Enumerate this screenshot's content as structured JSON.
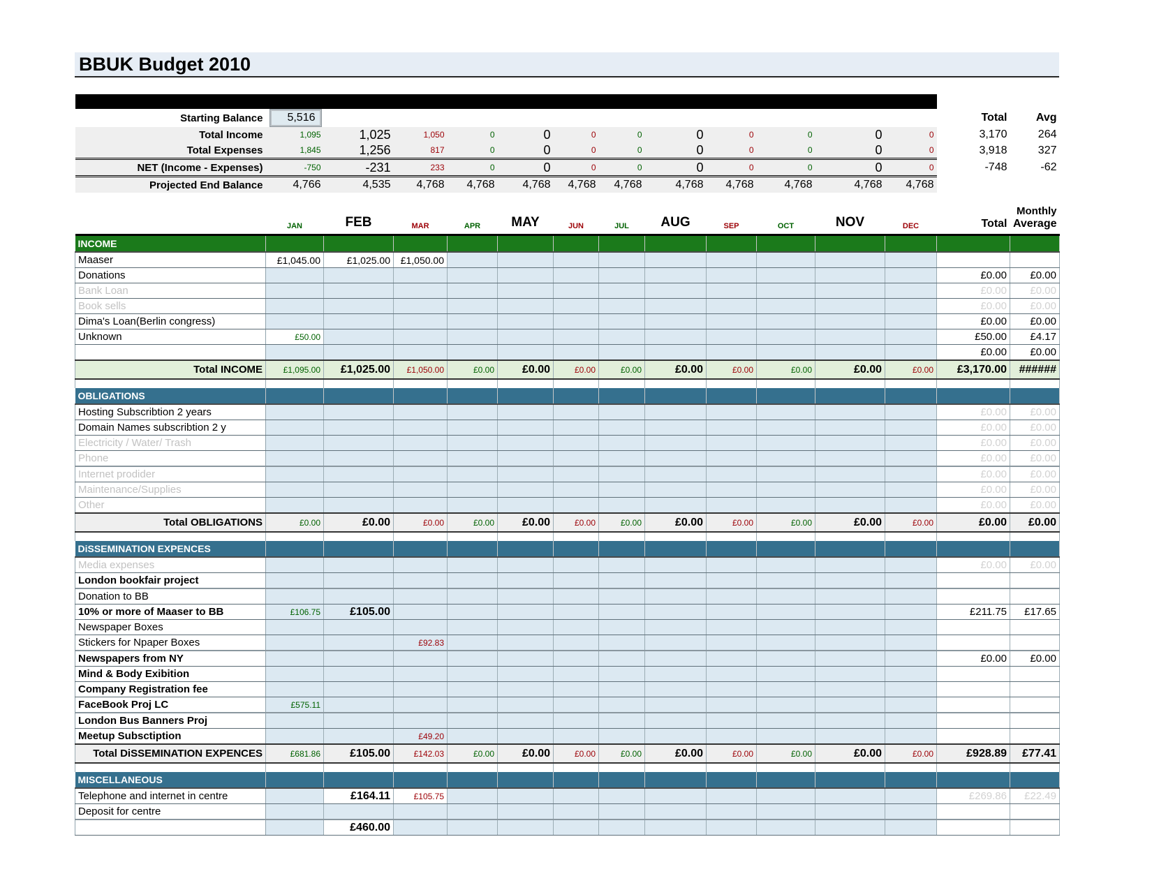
{
  "title": "BBUK Budget 2010",
  "colors": {
    "income_header": "#1B7A1B",
    "section_header": "#35708E",
    "month_cell_blue": "#DCE9F2",
    "total_income_bg": "#E2EFDA",
    "summary_band": "#EFEFEF",
    "value_green": "#006100",
    "value_red": "#9C0006",
    "disabled_gray": "#C2C2C2"
  },
  "months": [
    {
      "label": "JAN",
      "s": "g"
    },
    {
      "label": "FEB",
      "s": "b"
    },
    {
      "label": "MAR",
      "s": "r"
    },
    {
      "label": "APR",
      "s": "g"
    },
    {
      "label": "MAY",
      "s": "b"
    },
    {
      "label": "JUN",
      "s": "r"
    },
    {
      "label": "JUL",
      "s": "g"
    },
    {
      "label": "AUG",
      "s": "b"
    },
    {
      "label": "SEP",
      "s": "r"
    },
    {
      "label": "OCT",
      "s": "g"
    },
    {
      "label": "NOV",
      "s": "b"
    },
    {
      "label": "DEC",
      "s": "r"
    }
  ],
  "summary": {
    "starting_balance": {
      "label": "Starting Balance",
      "value": "5,516"
    },
    "total_header": "Total",
    "avg_header": "Avg",
    "monthly_label": "Monthly",
    "total_label": "Total",
    "average_label": "Average",
    "rows": [
      {
        "label": "Total Income",
        "values": [
          "1,095",
          "1,025",
          "1,050",
          "0",
          "0",
          "0",
          "0",
          "0",
          "0",
          "0",
          "0",
          "0"
        ],
        "total": "3,170",
        "avg": "264",
        "mode": "pattern"
      },
      {
        "label": "Total Expenses",
        "values": [
          "1,845",
          "1,256",
          "817",
          "0",
          "0",
          "0",
          "0",
          "0",
          "0",
          "0",
          "0",
          "0"
        ],
        "total": "3,918",
        "avg": "327",
        "mode": "pattern",
        "dbot": true
      },
      {
        "label": "NET (Income - Expenses)",
        "values": [
          "-750",
          "-231",
          "233",
          "0",
          "0",
          "0",
          "0",
          "0",
          "0",
          "0",
          "0",
          "0"
        ],
        "total": "-748",
        "avg": "-62",
        "mode": "pattern",
        "dbot": true
      },
      {
        "label": "Projected End Balance",
        "values": [
          "4,766",
          "4,535",
          "4,768",
          "4,768",
          "4,768",
          "4,768",
          "4,768",
          "4,768",
          "4,768",
          "4,768",
          "4,768",
          "4,768"
        ],
        "total": "",
        "avg": "",
        "mode": "plain"
      }
    ]
  },
  "sections": [
    {
      "name": "INCOME",
      "style": "green",
      "total_bg": "green",
      "gap_after": true,
      "rows": [
        {
          "label": "Maaser",
          "cells": [
            {
              "i": 0,
              "v": "£1,045.00",
              "c": "vp",
              "w": true
            },
            {
              "i": 1,
              "v": "£1,025.00",
              "c": "vp",
              "w": true
            },
            {
              "i": 2,
              "v": "£1,050.00",
              "c": "vp",
              "w": true
            }
          ],
          "total": "",
          "avg": ""
        },
        {
          "label": "Donations",
          "total": "£0.00",
          "avg": "£0.00"
        },
        {
          "label": "Bank Loan",
          "ls": "gray",
          "total": "£0.00",
          "avg": "£0.00",
          "tg": true
        },
        {
          "label": "Book sells",
          "ls": "gray",
          "total": "£0.00",
          "avg": "£0.00",
          "tg": true
        },
        {
          "label": "Dima's Loan(Berlin congress)",
          "total": "£0.00",
          "avg": "£0.00"
        },
        {
          "label": "Unknown",
          "cells": [
            {
              "i": 0,
              "v": "£50.00",
              "c": "vg",
              "w": true
            }
          ],
          "total": "£50.00",
          "avg": "£4.17"
        },
        {
          "label": "",
          "total": "£0.00",
          "avg": "£0.00"
        }
      ],
      "total_row": {
        "label": "Total INCOME",
        "values": [
          "£1,095.00",
          "£1,025.00",
          "£1,050.00",
          "£0.00",
          "£0.00",
          "£0.00",
          "£0.00",
          "£0.00",
          "£0.00",
          "£0.00",
          "£0.00",
          "£0.00"
        ],
        "total": "£3,170.00",
        "avg": "######"
      }
    },
    {
      "name": "OBLIGATIONS",
      "style": "slate",
      "total_bg": "gray",
      "gap_after": true,
      "rows": [
        {
          "label": "Hosting Subscribtion 2 years",
          "total": "£0.00",
          "avg": "£0.00",
          "tg": true
        },
        {
          "label": "Domain Names subscribtion 2 y",
          "total": "£0.00",
          "avg": "£0.00",
          "tg": true
        },
        {
          "label": "Electricity / Water/ Trash",
          "ls": "gray",
          "total": "£0.00",
          "avg": "£0.00",
          "tg": true
        },
        {
          "label": "Phone",
          "ls": "gray",
          "total": "£0.00",
          "avg": "£0.00",
          "tg": true,
          "strong": true
        },
        {
          "label": "Internet prodider",
          "ls": "gray",
          "total": "£0.00",
          "avg": "£0.00",
          "tg": true
        },
        {
          "label": "Maintenance/Supplies",
          "ls": "gray",
          "total": "£0.00",
          "avg": "£0.00",
          "tg": true
        },
        {
          "label": "Other",
          "ls": "gray",
          "total": "£0.00",
          "avg": "£0.00",
          "tg": true
        }
      ],
      "total_row": {
        "label": "Total OBLIGATIONS",
        "values": [
          "£0.00",
          "£0.00",
          "£0.00",
          "£0.00",
          "£0.00",
          "£0.00",
          "£0.00",
          "£0.00",
          "£0.00",
          "£0.00",
          "£0.00",
          "£0.00"
        ],
        "total": "£0.00",
        "avg": "£0.00"
      }
    },
    {
      "name": "DiSSEMINATION EXPENCES",
      "style": "slate",
      "total_bg": "gray",
      "gap_after": true,
      "rows": [
        {
          "label": "Media expenses",
          "ls": "gray",
          "total": "£0.00",
          "avg": "£0.00",
          "tg": true
        },
        {
          "label": "London bookfair project",
          "ls": "bold",
          "strong": true
        },
        {
          "label": "Donation to BB"
        },
        {
          "label": "10% or more of Maaser to BB",
          "ls": "bold",
          "cells": [
            {
              "i": 0,
              "v": "£106.75",
              "c": "vg"
            },
            {
              "i": 1,
              "v": "£105.00",
              "c": "vb"
            }
          ],
          "total": "£211.75",
          "avg": "£17.65"
        },
        {
          "label": "Newspaper Boxes"
        },
        {
          "label": "Stickers for Npaper Boxes",
          "cells": [
            {
              "i": 2,
              "v": "£92.83",
              "c": "vr"
            }
          ],
          "strong": true
        },
        {
          "label": "Newspapers from NY",
          "ls": "bold",
          "total": "£0.00",
          "avg": "£0.00"
        },
        {
          "label": "Mind & Body Exibition",
          "ls": "bold"
        },
        {
          "label": "Company Registration fee",
          "ls": "bold"
        },
        {
          "label": "FaceBook Proj LC",
          "ls": "bold",
          "cells": [
            {
              "i": 0,
              "v": "£575.11",
              "c": "vg"
            }
          ],
          "strong": true
        },
        {
          "label": "London Bus Banners Proj",
          "ls": "bold"
        },
        {
          "label": "Meetup Subsctiption",
          "ls": "bold",
          "cells": [
            {
              "i": 2,
              "v": "£49.20",
              "c": "vr"
            }
          ]
        }
      ],
      "total_row": {
        "label": "Total DiSSEMINATION EXPENCES",
        "values": [
          "£681.86",
          "£105.00",
          "£142.03",
          "£0.00",
          "£0.00",
          "£0.00",
          "£0.00",
          "£0.00",
          "£0.00",
          "£0.00",
          "£0.00",
          "£0.00"
        ],
        "total": "£928.89",
        "avg": "£77.41"
      }
    },
    {
      "name": "MISCELLANEOUS",
      "style": "slate",
      "gap_after": false,
      "rows": [
        {
          "label": "Telephone and internet in centre",
          "cells": [
            {
              "i": 1,
              "v": "£164.11",
              "c": "vb",
              "w": true
            },
            {
              "i": 2,
              "v": "£105.75",
              "c": "vr",
              "w": true
            }
          ],
          "total": "£269.86",
          "avg": "£22.49",
          "tg": true
        },
        {
          "label": "Deposit for centre",
          "strong": true
        },
        {
          "label": "",
          "cells": [
            {
              "i": 1,
              "v": "£460.00",
              "c": "vb",
              "w": true
            }
          ]
        }
      ]
    }
  ]
}
